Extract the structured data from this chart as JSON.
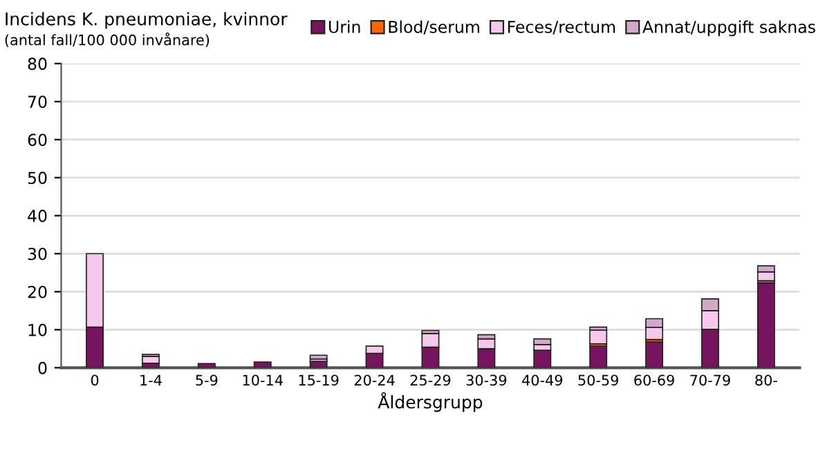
{
  "chart_data": {
    "type": "bar",
    "title": "Incidens K. pneumoniae, kvinnor",
    "subtitle": "(antal fall/100 000 invånare)",
    "xlabel": "Åldersgrupp",
    "categories": [
      "0",
      "1-4",
      "5-9",
      "10-14",
      "15-19",
      "20-24",
      "25-29",
      "30-39",
      "40-49",
      "50-59",
      "60-69",
      "70-79",
      "80-"
    ],
    "stacked": true,
    "series": [
      {
        "name": "Urin",
        "color": "#76145f",
        "values": [
          10.7,
          1.2,
          1.1,
          1.5,
          1.7,
          3.8,
          5.4,
          5.0,
          4.6,
          5.7,
          6.8,
          10.1,
          22.3
        ]
      },
      {
        "name": "Blod/serum",
        "color": "#ff6600",
        "values": [
          null,
          null,
          null,
          null,
          null,
          null,
          null,
          null,
          null,
          0.6,
          0.6,
          null,
          0.6
        ]
      },
      {
        "name": "Feces/rectum",
        "color": "#f5c8ec",
        "values": [
          19.3,
          1.8,
          null,
          null,
          0.6,
          1.9,
          3.6,
          2.6,
          1.5,
          3.6,
          3.2,
          4.9,
          2.3
        ]
      },
      {
        "name": "Annat/uppgift saknas",
        "color": "#d2a8c8",
        "values": [
          null,
          0.5,
          null,
          null,
          1.0,
          null,
          0.8,
          1.1,
          1.5,
          0.8,
          2.3,
          3.1,
          1.6
        ]
      }
    ],
    "ylim": [
      0,
      80
    ],
    "yticks": [
      0,
      10,
      20,
      30,
      40,
      50,
      60,
      70,
      80
    ],
    "grid": "y",
    "legend": "top right"
  }
}
